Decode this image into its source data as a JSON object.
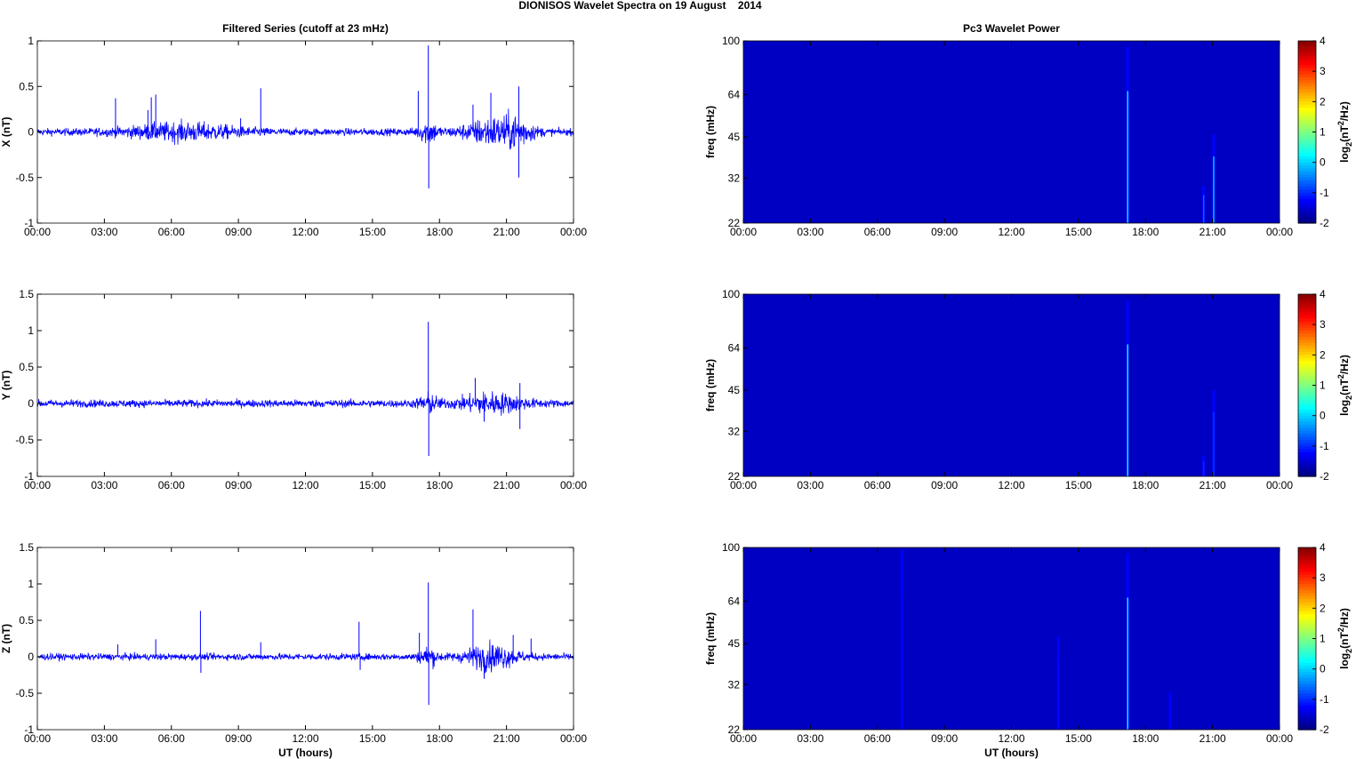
{
  "figure": {
    "title": "DIONISOS Wavelet Spectra on 19 August    2014"
  },
  "chart_data": [
    {
      "type": "line",
      "title": "Filtered Series (cutoff at 23 mHz)",
      "xlabel": "",
      "ylabel": "X (nT)",
      "xlim": [
        0,
        24
      ],
      "ylim": [
        -1,
        1
      ],
      "x_ticks": [
        "00:00",
        "03:00",
        "06:00",
        "09:00",
        "12:00",
        "15:00",
        "18:00",
        "21:00",
        "00:00"
      ],
      "y_ticks": [
        "1",
        "0.5",
        "0",
        "-0.5",
        "-1"
      ],
      "y_tick_values": [
        1,
        0.5,
        0,
        -0.5,
        -1
      ],
      "series_color": "#0000ff",
      "baseline_amplitude": 0.03,
      "activity": [
        {
          "t": 6.5,
          "span": 3.5,
          "amp": 0.06
        },
        {
          "t": 17.5,
          "span": 0.6,
          "amp": 0.08
        },
        {
          "t": 20.3,
          "span": 1.8,
          "amp": 0.1
        },
        {
          "t": 21.5,
          "span": 1.0,
          "amp": 0.08
        }
      ],
      "spikes": [
        {
          "t": 3.5,
          "value": 0.37
        },
        {
          "t": 5.1,
          "value": 0.38
        },
        {
          "t": 5.3,
          "value": 0.41
        },
        {
          "t": 4.95,
          "value": 0.24
        },
        {
          "t": 10.0,
          "value": 0.48
        },
        {
          "t": 9.1,
          "value": 0.15
        },
        {
          "t": 17.05,
          "value": 0.45
        },
        {
          "t": 17.5,
          "value": 0.95
        },
        {
          "t": 17.52,
          "value": -0.62
        },
        {
          "t": 19.5,
          "value": 0.3
        },
        {
          "t": 21.55,
          "value": 0.5
        },
        {
          "t": 21.55,
          "value": -0.5
        },
        {
          "t": 20.3,
          "value": 0.43
        }
      ]
    },
    {
      "type": "line",
      "title": "",
      "xlabel": "",
      "ylabel": "Y (nT)",
      "xlim": [
        0,
        24
      ],
      "ylim": [
        -1,
        1.5
      ],
      "x_ticks": [
        "00:00",
        "03:00",
        "06:00",
        "09:00",
        "12:00",
        "15:00",
        "18:00",
        "21:00",
        "00:00"
      ],
      "y_ticks": [
        "1.5",
        "1",
        "0.5",
        "0",
        "-0.5",
        "-1"
      ],
      "y_tick_values": [
        1.5,
        1,
        0.5,
        0,
        -0.5,
        -1
      ],
      "series_color": "#0000ff",
      "baseline_amplitude": 0.04,
      "activity": [
        {
          "t": 17.5,
          "span": 0.6,
          "amp": 0.08
        },
        {
          "t": 20.3,
          "span": 2.0,
          "amp": 0.09
        }
      ],
      "spikes": [
        {
          "t": 17.5,
          "value": 1.12
        },
        {
          "t": 17.52,
          "value": -0.72
        },
        {
          "t": 19.6,
          "value": 0.35
        },
        {
          "t": 21.6,
          "value": 0.28
        },
        {
          "t": 21.6,
          "value": -0.35
        },
        {
          "t": 20.0,
          "value": -0.25
        }
      ]
    },
    {
      "type": "line",
      "title": "",
      "xlabel": "UT (hours)",
      "ylabel": "Z (nT)",
      "xlim": [
        0,
        24
      ],
      "ylim": [
        -1,
        1.5
      ],
      "x_ticks": [
        "00:00",
        "03:00",
        "06:00",
        "09:00",
        "12:00",
        "15:00",
        "18:00",
        "21:00",
        "00:00"
      ],
      "y_ticks": [
        "1.5",
        "1",
        "0.5",
        "0",
        "-0.5",
        "-1"
      ],
      "y_tick_values": [
        1.5,
        1,
        0.5,
        0,
        -0.5,
        -1
      ],
      "series_color": "#0000ff",
      "baseline_amplitude": 0.035,
      "activity": [
        {
          "t": 17.5,
          "span": 0.6,
          "amp": 0.08
        },
        {
          "t": 20.3,
          "span": 1.6,
          "amp": 0.12
        }
      ],
      "spikes": [
        {
          "t": 3.6,
          "value": 0.17
        },
        {
          "t": 5.3,
          "value": 0.24
        },
        {
          "t": 7.3,
          "value": 0.63
        },
        {
          "t": 7.32,
          "value": -0.22
        },
        {
          "t": 10.0,
          "value": 0.2
        },
        {
          "t": 14.4,
          "value": 0.48
        },
        {
          "t": 14.45,
          "value": -0.18
        },
        {
          "t": 17.1,
          "value": 0.33
        },
        {
          "t": 17.5,
          "value": 1.02
        },
        {
          "t": 17.52,
          "value": -0.66
        },
        {
          "t": 19.5,
          "value": 0.65
        },
        {
          "t": 21.3,
          "value": 0.3
        },
        {
          "t": 22.1,
          "value": 0.25
        },
        {
          "t": 20.0,
          "value": -0.3
        }
      ]
    },
    {
      "type": "heatmap",
      "title": "Pc3 Wavelet Power",
      "xlabel": "",
      "ylabel": "freq (mHz)",
      "colorbar_label": "log2(nT2/Hz)",
      "xlim": [
        0,
        24
      ],
      "ylim": [
        22,
        100
      ],
      "scale": "log",
      "x_ticks": [
        "00:00",
        "03:00",
        "06:00",
        "09:00",
        "12:00",
        "15:00",
        "18:00",
        "21:00",
        "00:00"
      ],
      "y_ticks": [
        "100",
        "64",
        "45",
        "32",
        "22"
      ],
      "y_tick_values": [
        100,
        64,
        45,
        32,
        22
      ],
      "colorbar_ticks": [
        "4",
        "3",
        "2",
        "1",
        "0",
        "-1",
        "-2"
      ],
      "clim": [
        -2,
        4
      ],
      "background_value": -1.6,
      "features": [
        {
          "t": 17.2,
          "f_top": 95,
          "value": 0.2
        },
        {
          "t": 20.6,
          "f_top": 30,
          "value": -0.6
        },
        {
          "t": 21.05,
          "f_top": 46,
          "value": 0.0
        }
      ]
    },
    {
      "type": "heatmap",
      "title": "",
      "xlabel": "",
      "ylabel": "freq (mHz)",
      "colorbar_label": "log2(nT2/Hz)",
      "xlim": [
        0,
        24
      ],
      "ylim": [
        22,
        100
      ],
      "scale": "log",
      "x_ticks": [
        "00:00",
        "03:00",
        "06:00",
        "09:00",
        "12:00",
        "15:00",
        "18:00",
        "21:00",
        "00:00"
      ],
      "y_ticks": [
        "100",
        "64",
        "45",
        "32",
        "22"
      ],
      "y_tick_values": [
        100,
        64,
        45,
        32,
        22
      ],
      "colorbar_ticks": [
        "4",
        "3",
        "2",
        "1",
        "0",
        "-1",
        "-2"
      ],
      "clim": [
        -2,
        4
      ],
      "background_value": -1.6,
      "features": [
        {
          "t": 17.2,
          "f_top": 95,
          "value": 0.4
        },
        {
          "t": 20.6,
          "f_top": 26,
          "value": -1.0
        },
        {
          "t": 21.05,
          "f_top": 45,
          "value": -0.9
        }
      ]
    },
    {
      "type": "heatmap",
      "title": "",
      "xlabel": "UT (hours)",
      "ylabel": "freq (mHz)",
      "colorbar_label": "log2(nT2/Hz)",
      "xlim": [
        0,
        24
      ],
      "ylim": [
        22,
        100
      ],
      "scale": "log",
      "x_ticks": [
        "00:00",
        "03:00",
        "06:00",
        "09:00",
        "12:00",
        "15:00",
        "18:00",
        "21:00",
        "00:00"
      ],
      "y_ticks": [
        "100",
        "64",
        "45",
        "32",
        "22"
      ],
      "y_tick_values": [
        100,
        64,
        45,
        32,
        22
      ],
      "colorbar_ticks": [
        "4",
        "3",
        "2",
        "1",
        "0",
        "-1",
        "-2"
      ],
      "clim": [
        -2,
        4
      ],
      "background_value": -1.6,
      "features": [
        {
          "t": 7.1,
          "f_top": 98,
          "value": -1.3
        },
        {
          "t": 14.1,
          "f_top": 48,
          "value": -1.2
        },
        {
          "t": 17.2,
          "f_top": 95,
          "value": 0.3
        },
        {
          "t": 19.1,
          "f_top": 30,
          "value": -1.3
        }
      ]
    }
  ]
}
